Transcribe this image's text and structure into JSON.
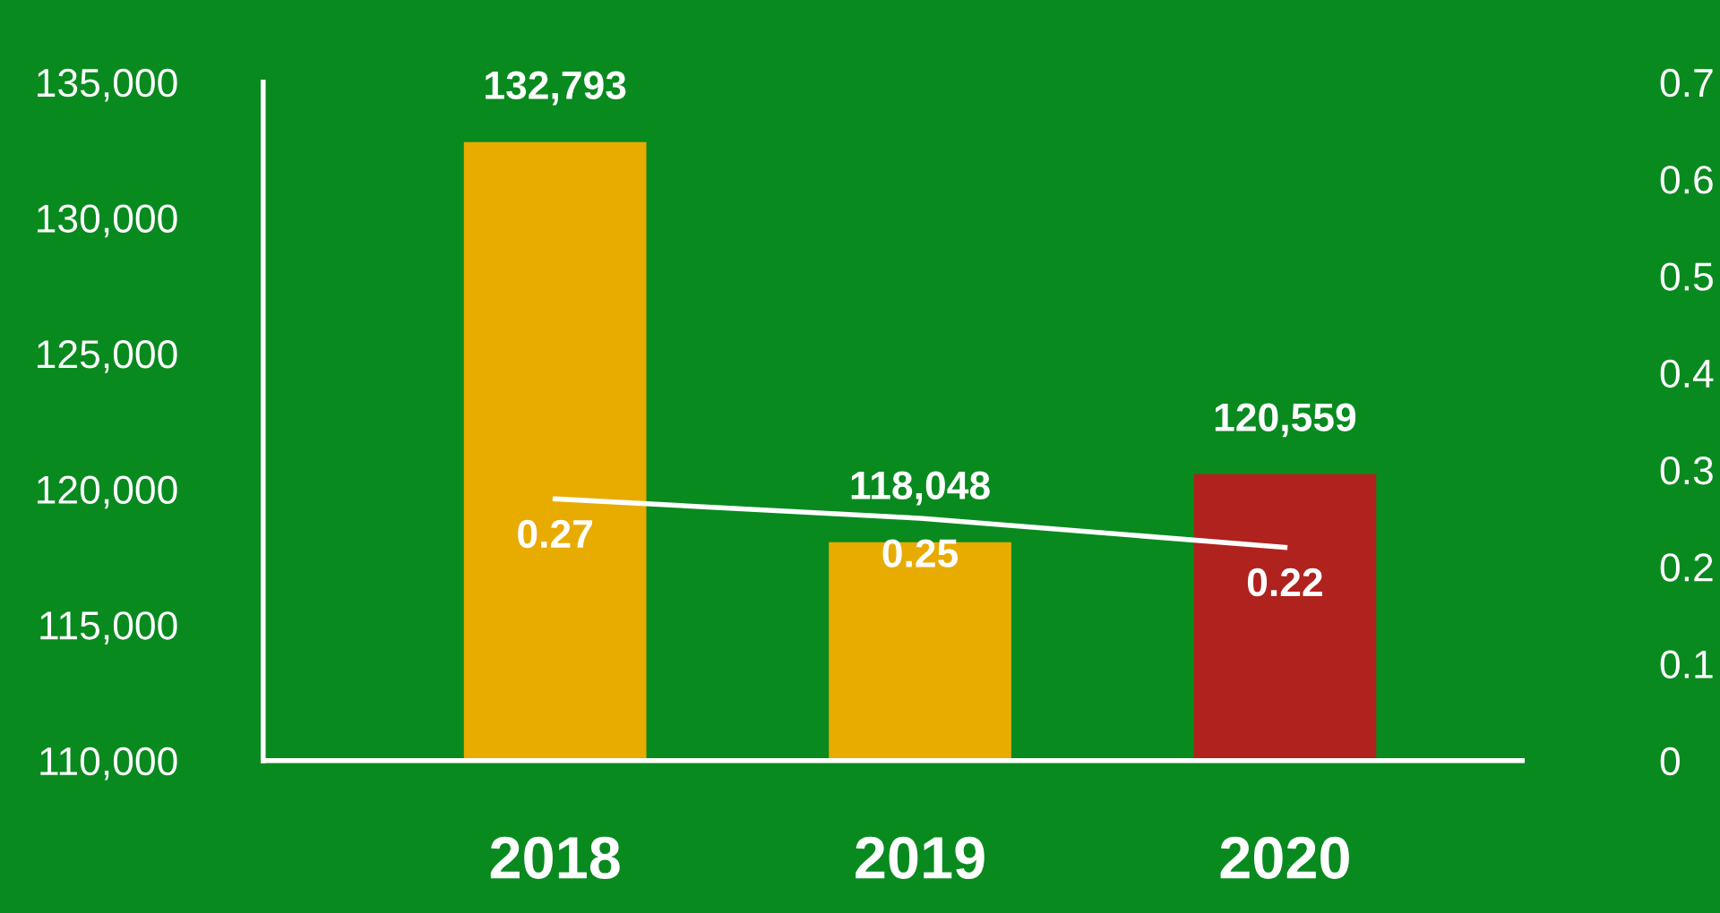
{
  "chart_data": {
    "type": "bar",
    "categories": [
      "2018",
      "2019",
      "2020"
    ],
    "series": [
      {
        "colors": [
          "#e8ab00",
          "#e8ab00",
          "#b0221d"
        ],
        "values": [
          132793,
          118048,
          120559
        ],
        "value_labels": [
          "132,793",
          "118,048",
          "120,559"
        ]
      },
      {
        "type": "line",
        "axis": "y2",
        "color": "#ffffff",
        "values": [
          0.27,
          0.25,
          0.22
        ],
        "value_labels": [
          "0.27",
          "0.25",
          "0.22"
        ]
      }
    ],
    "ylim": [
      110000,
      135000
    ],
    "yticks": [
      {
        "value": 110000,
        "label": "110,000"
      },
      {
        "value": 115000,
        "label": "115,000"
      },
      {
        "value": 120000,
        "label": "120,000"
      },
      {
        "value": 125000,
        "label": "125,000"
      },
      {
        "value": 130000,
        "label": "130,000"
      },
      {
        "value": 135000,
        "label": "135,000"
      }
    ],
    "y2lim": [
      0,
      0.7
    ],
    "y2ticks": [
      0,
      0.1,
      0.2,
      0.3,
      0.4,
      0.5,
      0.6,
      0.7
    ],
    "grid": false,
    "legend": false,
    "marker": "none",
    "line_style": "solid"
  }
}
